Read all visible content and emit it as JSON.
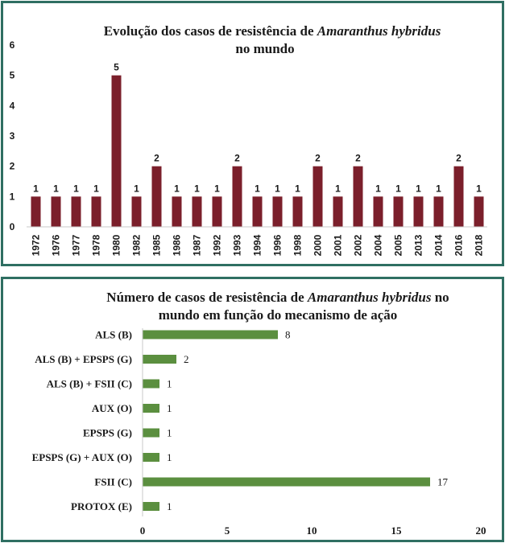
{
  "chart_data": [
    {
      "type": "bar",
      "title_prefix": "Evolução dos casos de resistência de ",
      "title_species": "Amaranthus hybridus",
      "title_line2": "no mundo",
      "categories": [
        "1972",
        "1976",
        "1977",
        "1978",
        "1980",
        "1982",
        "1985",
        "1986",
        "1987",
        "1992",
        "1993",
        "1994",
        "1996",
        "1998",
        "2000",
        "2001",
        "2002",
        "2004",
        "2005",
        "2013",
        "2014",
        "2016",
        "2018"
      ],
      "values": [
        1,
        1,
        1,
        1,
        5,
        1,
        2,
        1,
        1,
        1,
        2,
        1,
        1,
        1,
        2,
        1,
        2,
        1,
        1,
        1,
        1,
        2,
        1
      ],
      "yticks": [
        "0",
        "1",
        "2",
        "3",
        "4",
        "5",
        "6"
      ],
      "ylim": [
        0,
        6
      ],
      "color": "#7b1f2b",
      "grid": false
    },
    {
      "type": "bar",
      "orientation": "horizontal",
      "title_line1_prefix": "Número de casos de resistência de ",
      "title_species": "Amaranthus hybridus",
      "title_line1_suffix": " no",
      "title_line2": "mundo em função do mecanismo de ação",
      "categories": [
        "ALS (B)",
        "ALS (B) + EPSPS (G)",
        "ALS (B) + FSII (C)",
        "AUX (O)",
        "EPSPS (G)",
        "EPSPS (G) + AUX (O)",
        "FSII (C)",
        "PROTOX (E)"
      ],
      "values": [
        8,
        2,
        1,
        1,
        1,
        1,
        17,
        1
      ],
      "xticks": [
        "0",
        "5",
        "10",
        "15",
        "20"
      ],
      "xlim": [
        0,
        20
      ],
      "color": "#5b8f3f",
      "grid": false
    }
  ]
}
